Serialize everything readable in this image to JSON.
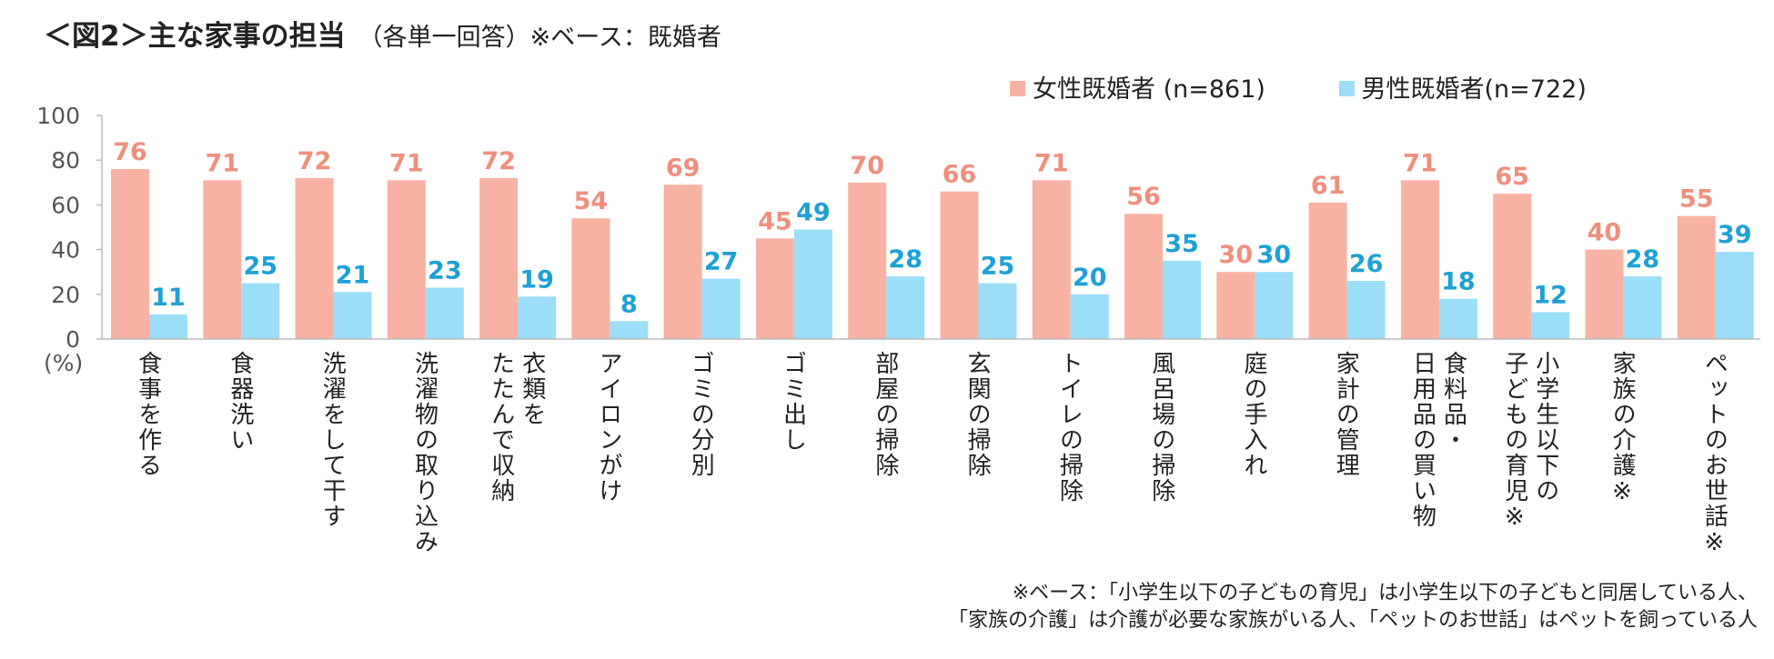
{
  "header": {
    "title": "＜図2＞主な家事の担当",
    "subtitle": "（各単一回答）※ベース：既婚者"
  },
  "colors": {
    "female": "#F8B2A3",
    "male": "#9CDDF8",
    "female_label": "#EF8F7D",
    "male_label": "#1EA0D6",
    "axis": "#BBBBBB",
    "tick_text": "#555555"
  },
  "chart_data": {
    "type": "bar",
    "ylim": [
      0,
      100
    ],
    "yticks": [
      "0",
      "20",
      "40",
      "60",
      "80",
      "100"
    ],
    "ylabel": "(%)",
    "legend_position": "top-right",
    "categories": [
      "食事を作る",
      "食器洗い",
      "洗濯をして干す",
      "洗濯物の取り込み",
      "衣類を\nたたんで収納",
      "アイロンがけ",
      "ゴミの分別",
      "ゴミ出し",
      "部屋の掃除",
      "玄関の掃除",
      "トイレの掃除",
      "風呂場の掃除",
      "庭の手入れ",
      "家計の管理",
      "食料品・\n日用品の買い物",
      "小学生以下の\n子どもの育児※",
      "家族の介護※",
      "ペットのお世話※"
    ],
    "series": [
      {
        "name": "女性既婚者 (n=861)",
        "values": [
          76,
          71,
          72,
          71,
          72,
          54,
          69,
          45,
          70,
          66,
          71,
          56,
          30,
          61,
          71,
          65,
          40,
          55
        ]
      },
      {
        "name": "男性既婚者(n=722)",
        "values": [
          11,
          25,
          21,
          23,
          19,
          8,
          27,
          49,
          28,
          25,
          20,
          35,
          30,
          26,
          18,
          12,
          28,
          39
        ]
      }
    ]
  },
  "footnote": {
    "line1": "※ベース：「小学生以下の子どもの育児」は小学生以下の子どもと同居している人、",
    "line2": "「家族の介護」は介護が必要な家族がいる人、「ペットのお世話」はペットを飼っている人"
  }
}
